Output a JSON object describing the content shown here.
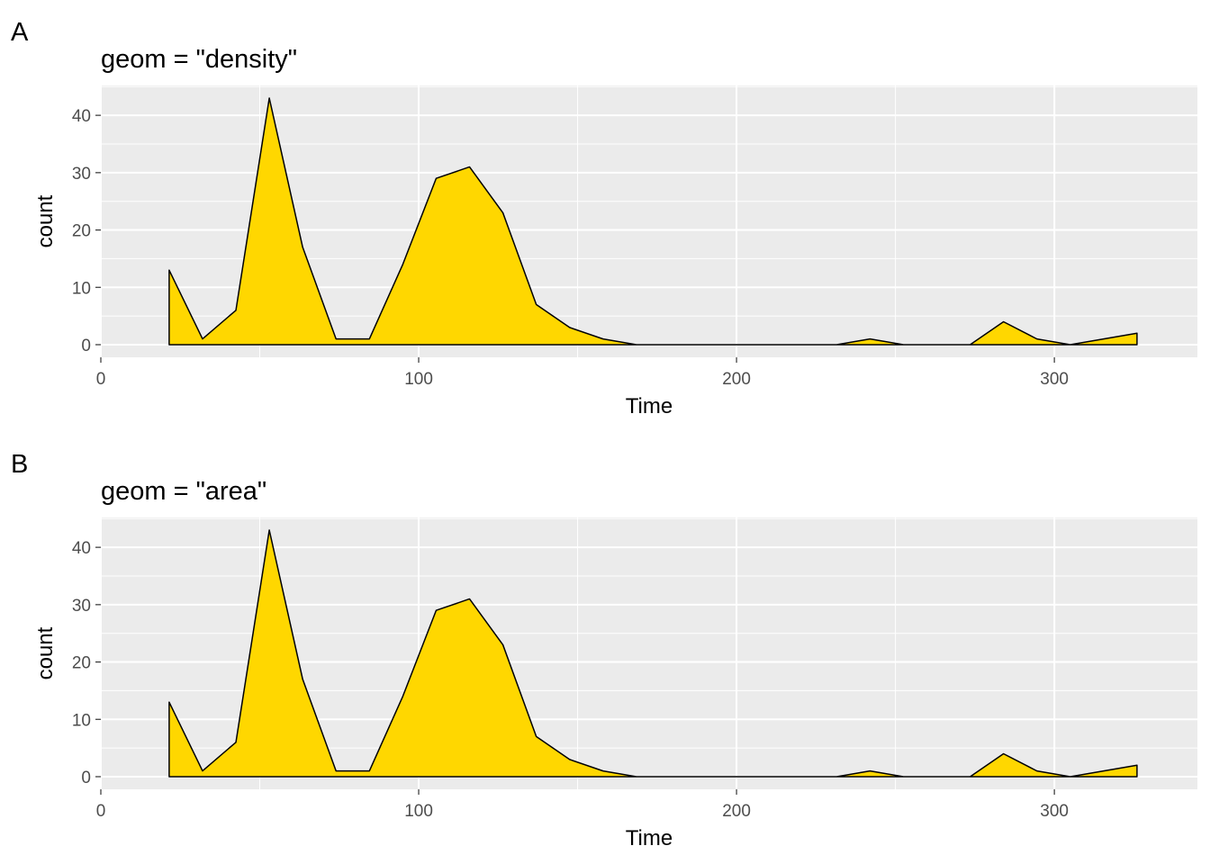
{
  "chart_data": [
    {
      "type": "area",
      "tag": "A",
      "title": "geom = \"density\"",
      "xlabel": "Time",
      "ylabel": "count",
      "xlim": [
        0,
        345
      ],
      "ylim": [
        -2.2,
        45.2
      ],
      "xticks": [
        0,
        100,
        200,
        300
      ],
      "yticks": [
        0,
        10,
        20,
        30,
        40
      ],
      "grid": true,
      "fill_color": "#FFD700",
      "line_color": "#000000",
      "panel_color": "#EBEBEB",
      "x": [
        21.5,
        32.0,
        42.5,
        53.0,
        63.5,
        74.0,
        84.5,
        95.0,
        105.5,
        116.0,
        126.5,
        137.0,
        147.5,
        158.0,
        168.5,
        179.0,
        189.5,
        200.0,
        210.5,
        221.0,
        231.5,
        242.0,
        252.5,
        263.0,
        273.5,
        284.0,
        294.5,
        305.0,
        315.5,
        326.0
      ],
      "values": [
        13,
        1,
        6,
        43,
        17,
        1,
        1,
        14,
        29,
        31,
        23,
        7,
        3,
        1,
        0,
        0,
        0,
        0,
        0,
        0,
        0,
        1,
        0,
        0,
        0,
        4,
        1,
        0,
        1,
        2
      ]
    },
    {
      "type": "area",
      "tag": "B",
      "title": "geom = \"area\"",
      "xlabel": "Time",
      "ylabel": "count",
      "xlim": [
        0,
        345
      ],
      "ylim": [
        -2.2,
        45.2
      ],
      "xticks": [
        0,
        100,
        200,
        300
      ],
      "yticks": [
        0,
        10,
        20,
        30,
        40
      ],
      "grid": true,
      "fill_color": "#FFD700",
      "line_color": "#000000",
      "panel_color": "#EBEBEB",
      "x": [
        21.5,
        32.0,
        42.5,
        53.0,
        63.5,
        74.0,
        84.5,
        95.0,
        105.5,
        116.0,
        126.5,
        137.0,
        147.5,
        158.0,
        168.5,
        179.0,
        189.5,
        200.0,
        210.5,
        221.0,
        231.5,
        242.0,
        252.5,
        263.0,
        273.5,
        284.0,
        294.5,
        305.0,
        315.5,
        326.0
      ],
      "values": [
        13,
        1,
        6,
        43,
        17,
        1,
        1,
        14,
        29,
        31,
        23,
        7,
        3,
        1,
        0,
        0,
        0,
        0,
        0,
        0,
        0,
        1,
        0,
        0,
        0,
        4,
        1,
        0,
        1,
        2
      ]
    }
  ]
}
